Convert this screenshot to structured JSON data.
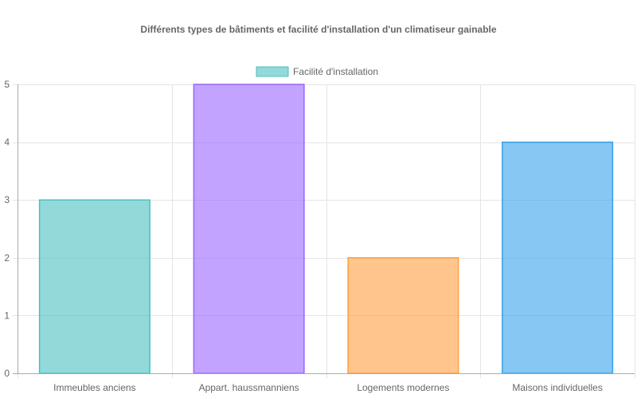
{
  "chart_data": {
    "type": "bar",
    "title": "Différents types de bâtiments et facilité d'installation d'un climatiseur gainable",
    "xlabel": "",
    "ylabel": "",
    "categories": [
      "Immeubles anciens",
      "Appart. haussmanniens",
      "Logements modernes",
      "Maisons individuelles"
    ],
    "series": [
      {
        "name": "Facilité d'installation",
        "values": [
          3,
          5,
          2,
          4
        ]
      }
    ],
    "ylim": [
      0,
      5
    ],
    "yticks": [
      "0",
      "1",
      "2",
      "3",
      "4",
      "5"
    ],
    "grid": true,
    "legend_position": "top-center",
    "colors": {
      "fills": [
        "rgba(75,192,192,0.6)",
        "rgba(153,102,255,0.6)",
        "rgba(255,159,64,0.6)",
        "rgba(54,162,235,0.6)"
      ],
      "borders": [
        "#4bc0c0",
        "#9966ff",
        "#ff9f40",
        "#36a2eb"
      ],
      "legend_fill": "rgba(75,192,192,0.6)",
      "legend_border": "#4bc0c0",
      "grid": "#e5e5e5",
      "axis": "#aaaaaa",
      "text": "#666666"
    }
  }
}
